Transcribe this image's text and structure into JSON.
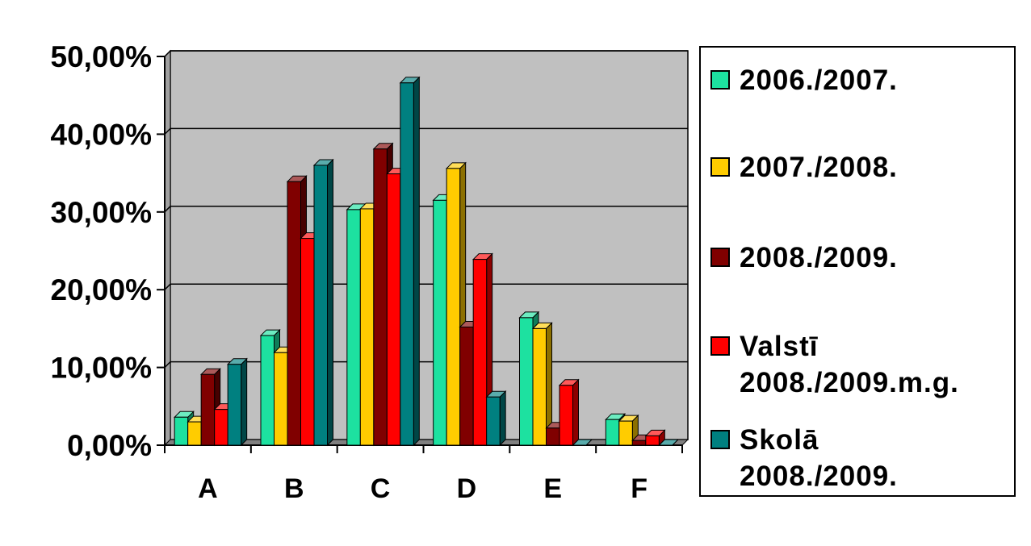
{
  "chart_data": {
    "type": "bar",
    "categories": [
      "A",
      "B",
      "C",
      "D",
      "E",
      "F"
    ],
    "series": [
      {
        "name": "2006./2007.",
        "color": "#1de1a0",
        "values": [
          3.6,
          14.1,
          30.3,
          31.5,
          16.4,
          3.3
        ]
      },
      {
        "name": "2007./2008.",
        "color": "#ffcc00",
        "values": [
          3.0,
          11.9,
          30.4,
          35.6,
          15.0,
          3.1
        ]
      },
      {
        "name": "2008./2009.",
        "color": "#800000",
        "values": [
          9.1,
          33.9,
          38.1,
          15.2,
          2.2,
          0.6
        ]
      },
      {
        "name": "Valstī\n2008./2009.m.g.",
        "color": "#ff0000",
        "values": [
          4.6,
          26.6,
          34.9,
          23.9,
          7.7,
          1.2
        ]
      },
      {
        "name": "Skolā\n2008./2009.",
        "color": "#008080",
        "values": [
          10.4,
          36.0,
          46.6,
          6.2,
          0.0,
          0.0
        ]
      }
    ],
    "yticks": [
      "0,00%",
      "10,00%",
      "20,00%",
      "30,00%",
      "40,00%",
      "50,00%"
    ],
    "ylim": [
      0,
      50
    ],
    "grid": true,
    "legend_position": "right",
    "plot_background": "#c0c0c0"
  }
}
